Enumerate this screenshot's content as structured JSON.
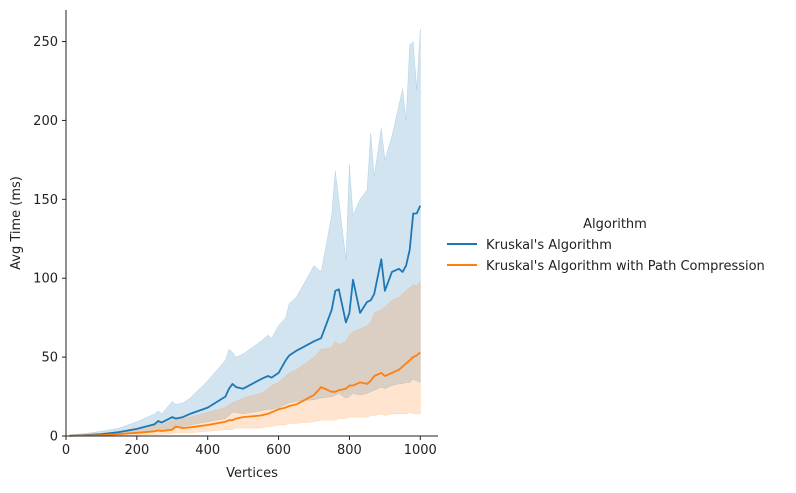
{
  "chart_data": {
    "type": "line",
    "title": "",
    "xlabel": "Vertices",
    "ylabel": "Avg Time (ms)",
    "xlim": [
      0,
      1050
    ],
    "ylim": [
      0,
      270
    ],
    "xticks": [
      0,
      200,
      400,
      600,
      800,
      1000
    ],
    "yticks": [
      0,
      50,
      100,
      150,
      200,
      250
    ],
    "grid": false,
    "legend": {
      "title": "Algorithm",
      "placement": "right-outside"
    },
    "x": [
      10,
      50,
      100,
      150,
      200,
      250,
      260,
      270,
      300,
      310,
      330,
      350,
      400,
      450,
      460,
      470,
      480,
      500,
      550,
      570,
      580,
      600,
      620,
      630,
      650,
      700,
      720,
      750,
      760,
      770,
      790,
      800,
      810,
      830,
      850,
      860,
      870,
      890,
      900,
      920,
      940,
      950,
      960,
      970,
      980,
      990,
      1000
    ],
    "series": [
      {
        "name": "Kruskal's Algorithm",
        "color": "#1f77b4",
        "values": [
          0.2,
          0.5,
          1.2,
          2.5,
          4.5,
          7.5,
          9.5,
          8.5,
          12,
          11,
          12,
          14,
          18,
          25,
          30,
          33,
          31,
          30,
          36,
          38,
          37,
          40,
          48,
          51,
          54,
          60,
          62,
          80,
          92,
          93,
          72,
          78,
          99,
          78,
          85,
          86,
          90,
          112,
          92,
          104,
          106,
          104,
          108,
          118,
          141,
          141,
          146
        ],
        "ci_low": [
          0,
          0.1,
          0.5,
          1,
          2,
          3,
          4,
          4,
          5,
          5,
          6,
          7,
          9,
          11,
          13,
          15,
          15,
          14,
          16,
          17,
          17,
          18,
          20,
          21,
          22,
          23,
          24,
          25,
          26,
          27,
          24,
          25,
          27,
          26,
          27,
          28,
          29,
          31,
          30,
          32,
          33,
          33,
          34,
          34,
          36,
          35,
          34
        ],
        "ci_high": [
          0.5,
          1.5,
          3,
          5,
          9,
          14,
          16,
          14,
          22,
          20,
          21,
          24,
          35,
          48,
          55,
          53,
          50,
          52,
          60,
          64,
          62,
          70,
          75,
          84,
          88,
          108,
          104,
          140,
          168,
          150,
          112,
          172,
          140,
          150,
          156,
          192,
          165,
          195,
          175,
          190,
          210,
          220,
          200,
          248,
          250,
          220,
          258
        ]
      },
      {
        "name": "Kruskal's Algorithm with Path Compression",
        "color": "#ff7f0e",
        "values": [
          0.1,
          0.3,
          0.6,
          1.2,
          2,
          3,
          3.5,
          3.2,
          4,
          6,
          5,
          5.5,
          7,
          9,
          10,
          10,
          11,
          12,
          13,
          14,
          15,
          17,
          18,
          19,
          20,
          26,
          31,
          28,
          28,
          29,
          30,
          32,
          32,
          34,
          33,
          35,
          38,
          40,
          38,
          40,
          42,
          44,
          46,
          48,
          50,
          51,
          53
        ],
        "ci_low": [
          0,
          0,
          0.1,
          0.3,
          0.5,
          1,
          1,
          1,
          1.5,
          2,
          2,
          2,
          3,
          4,
          4,
          4,
          5,
          5,
          5,
          6,
          6,
          7,
          7,
          8,
          8,
          9,
          10,
          10,
          10,
          11,
          11,
          12,
          12,
          12,
          12,
          13,
          13,
          14,
          13,
          14,
          14,
          14,
          14,
          15,
          14,
          14,
          14
        ],
        "ci_high": [
          0.3,
          0.8,
          1.5,
          3,
          5,
          7,
          8,
          7,
          10,
          12,
          11,
          12,
          15,
          18,
          20,
          21,
          22,
          24,
          27,
          30,
          32,
          34,
          38,
          40,
          42,
          50,
          55,
          56,
          60,
          58,
          60,
          64,
          66,
          68,
          70,
          72,
          78,
          80,
          82,
          86,
          88,
          90,
          92,
          94,
          96,
          95,
          98
        ]
      }
    ]
  }
}
